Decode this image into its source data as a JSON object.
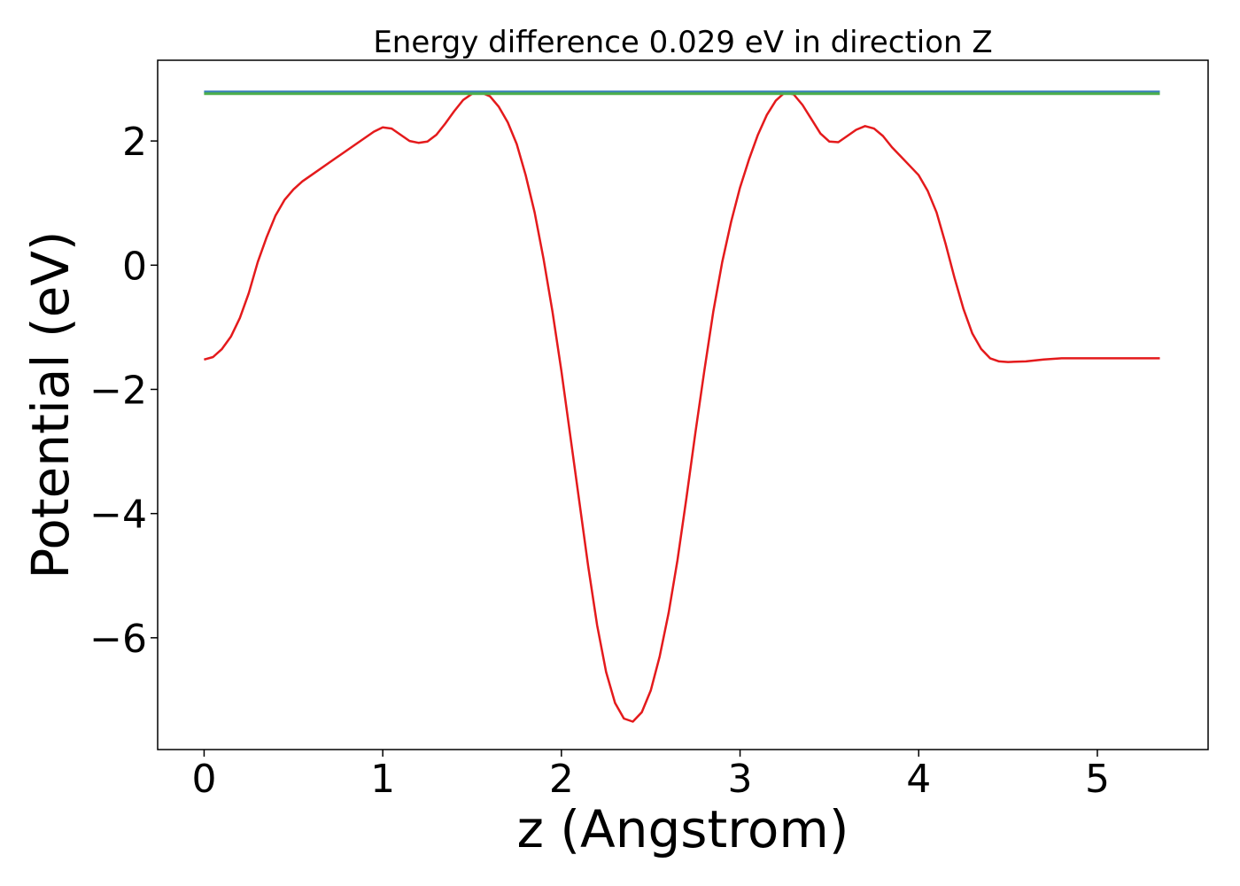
{
  "chart_data": {
    "type": "line",
    "title": "Energy difference 0.029 eV in direction Z",
    "xlabel": "z (Angstrom)",
    "ylabel": "Potential (eV)",
    "xlim": [
      -0.26,
      5.62
    ],
    "ylim": [
      -7.8,
      3.3
    ],
    "x_ticks": [
      0,
      1,
      2,
      3,
      4,
      5
    ],
    "x_tick_labels": [
      "0",
      "1",
      "2",
      "3",
      "4",
      "5"
    ],
    "y_ticks": [
      -6,
      -4,
      -2,
      0,
      2
    ],
    "y_tick_labels": [
      "−6",
      "−4",
      "−2",
      "0",
      "2"
    ],
    "grid": false,
    "colors": {
      "potential": "#e41a1c",
      "level_low": "#4daf4a",
      "level_high": "#377eb8"
    },
    "series": [
      {
        "color_key": "potential",
        "x": [
          0.0,
          0.05,
          0.1,
          0.15,
          0.2,
          0.25,
          0.3,
          0.35,
          0.4,
          0.45,
          0.5,
          0.55,
          0.6,
          0.7,
          0.8,
          0.9,
          0.95,
          1.0,
          1.05,
          1.1,
          1.15,
          1.2,
          1.25,
          1.3,
          1.35,
          1.4,
          1.45,
          1.5,
          1.55,
          1.6,
          1.65,
          1.7,
          1.75,
          1.8,
          1.85,
          1.9,
          1.95,
          2.0,
          2.05,
          2.1,
          2.15,
          2.2,
          2.25,
          2.3,
          2.35,
          2.4,
          2.45,
          2.5,
          2.55,
          2.6,
          2.65,
          2.7,
          2.75,
          2.8,
          2.85,
          2.9,
          2.95,
          3.0,
          3.05,
          3.1,
          3.15,
          3.2,
          3.25,
          3.3,
          3.35,
          3.4,
          3.45,
          3.5,
          3.55,
          3.6,
          3.65,
          3.7,
          3.75,
          3.8,
          3.85,
          3.9,
          3.95,
          4.0,
          4.05,
          4.1,
          4.15,
          4.2,
          4.25,
          4.3,
          4.35,
          4.4,
          4.45,
          4.5,
          4.6,
          4.7,
          4.8,
          4.85,
          4.9,
          4.95,
          5.0,
          5.05,
          5.1,
          5.15,
          5.2,
          5.25,
          5.3,
          5.35
        ],
        "y": [
          -1.52,
          -1.48,
          -1.35,
          -1.15,
          -0.85,
          -0.45,
          0.05,
          0.45,
          0.8,
          1.05,
          1.22,
          1.35,
          1.45,
          1.65,
          1.85,
          2.05,
          2.15,
          2.22,
          2.2,
          2.1,
          2.0,
          1.97,
          1.99,
          2.1,
          2.28,
          2.48,
          2.66,
          2.76,
          2.78,
          2.72,
          2.55,
          2.3,
          1.95,
          1.45,
          0.85,
          0.1,
          -0.75,
          -1.7,
          -2.75,
          -3.8,
          -4.85,
          -5.8,
          -6.55,
          -7.05,
          -7.3,
          -7.35,
          -7.2,
          -6.85,
          -6.3,
          -5.6,
          -4.75,
          -3.75,
          -2.7,
          -1.7,
          -0.75,
          0.05,
          0.7,
          1.25,
          1.7,
          2.1,
          2.42,
          2.65,
          2.78,
          2.75,
          2.58,
          2.35,
          2.12,
          1.99,
          1.98,
          2.08,
          2.18,
          2.24,
          2.2,
          2.08,
          1.9,
          1.75,
          1.6,
          1.45,
          1.2,
          0.85,
          0.35,
          -0.2,
          -0.7,
          -1.1,
          -1.35,
          -1.5,
          -1.55,
          -1.56,
          -1.55,
          -1.52,
          -1.5,
          -1.5,
          -1.5,
          -1.5,
          -1.5,
          -1.5,
          -1.5,
          -1.5,
          -1.5,
          -1.5,
          -1.5,
          -1.5
        ]
      },
      {
        "color_key": "level_high",
        "x": [
          0.0,
          5.35
        ],
        "y": [
          2.79,
          2.79
        ]
      },
      {
        "color_key": "level_low",
        "x": [
          0.0,
          5.35
        ],
        "y": [
          2.76,
          2.76
        ]
      }
    ]
  }
}
